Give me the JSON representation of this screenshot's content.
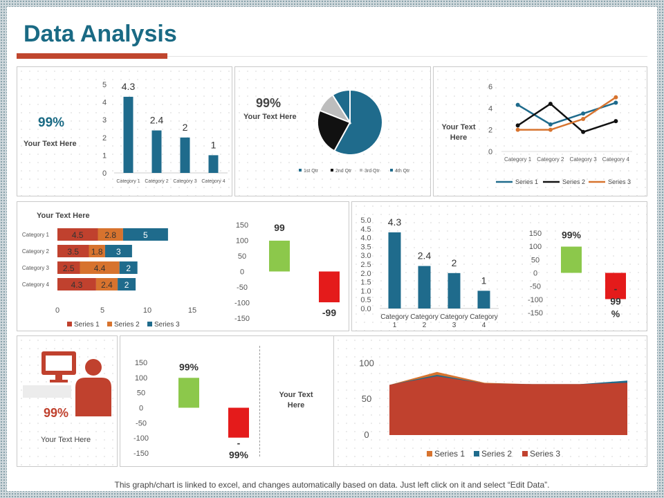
{
  "page": {
    "title": "Data Analysis",
    "footer": "This graph/chart is linked to excel, and changes automatically based on data. Just left click on it and select “Edit Data”."
  },
  "colors": {
    "blue": "#1f6b8c",
    "red": "#c0412e",
    "orange": "#d7732e",
    "black": "#111111",
    "gray": "#bdbdbd",
    "green": "#8cc84b",
    "brightred": "#e41b1b"
  },
  "panels": {
    "p1": {
      "kpi": "99%",
      "text": "Your Text Here"
    },
    "p2": {
      "kpi": "99%",
      "text": "Your Text Here"
    },
    "p3": {
      "text": "Your Text Here"
    },
    "p4": {
      "text": "Your Text Here",
      "pos_label": "99",
      "neg_label": "-99"
    },
    "p5": {
      "pos_label": "99%",
      "neg_label_line1": "-",
      "neg_label_line2": "99",
      "neg_label_line3": "%"
    },
    "p6": {
      "kpi": "99%",
      "text": "Your Text Here",
      "icon": "person-at-computer-icon"
    },
    "p7": {
      "pos_label": "99%",
      "neg_label_line1": "-",
      "neg_label_line2": "99%",
      "text": "Your Text Here"
    }
  },
  "chart_data": [
    {
      "id": "bar-top-left",
      "type": "bar",
      "categories": [
        "Category 1",
        "Category 2",
        "Category 3",
        "Category 4"
      ],
      "values": [
        4.3,
        2.4,
        2,
        1
      ],
      "data_labels": [
        "4.3",
        "2.4",
        "2",
        "1"
      ],
      "yticks": [
        "0",
        "1",
        "2",
        "3",
        "4",
        "5"
      ],
      "ylim": [
        0,
        5
      ]
    },
    {
      "id": "pie-top-middle",
      "type": "pie",
      "slices": [
        {
          "name": "1st Qtr",
          "value": 58
        },
        {
          "name": "2nd Qtr",
          "value": 23
        },
        {
          "name": "3rd Qtr",
          "value": 10
        },
        {
          "name": "4th Qtr",
          "value": 9
        }
      ]
    },
    {
      "id": "line-top-right",
      "type": "line",
      "categories": [
        "Category 1",
        "Category 2",
        "Category 3",
        "Category 4"
      ],
      "yticks": [
        "0",
        "2",
        "4",
        "6"
      ],
      "ylim": [
        0,
        6
      ],
      "series": [
        {
          "name": "Series 1",
          "values": [
            4.3,
            2.5,
            3.5,
            4.5
          ]
        },
        {
          "name": "Series 2",
          "values": [
            2.4,
            4.4,
            1.8,
            2.8
          ]
        },
        {
          "name": "Series 3",
          "values": [
            2,
            2,
            3,
            5
          ]
        }
      ]
    },
    {
      "id": "stacked-bar-mid-left",
      "type": "bar",
      "orientation": "horizontal",
      "stacked": true,
      "categories": [
        "Category 1",
        "Category 2",
        "Category 3",
        "Category 4"
      ],
      "xticks": [
        "0",
        "5",
        "10",
        "15"
      ],
      "xlim": [
        0,
        15
      ],
      "series": [
        {
          "name": "Series 1",
          "values": [
            4.5,
            3.5,
            2.5,
            4.3
          ],
          "labels": [
            "4.5",
            "3.5",
            "2.5",
            "4.3"
          ]
        },
        {
          "name": "Series 2",
          "values": [
            2.8,
            1.8,
            4.4,
            2.4
          ],
          "labels": [
            "2.8",
            "1.8",
            "4.4",
            "2.4"
          ]
        },
        {
          "name": "Series 3",
          "values": [
            5,
            3,
            2,
            2
          ],
          "labels": [
            "5",
            "3",
            "2",
            "2"
          ]
        }
      ]
    },
    {
      "id": "pos-neg-mid-left",
      "type": "bar",
      "values": [
        99,
        -99
      ],
      "yticks": [
        "150",
        "100",
        "50",
        "0",
        "-50",
        "-100",
        "-150"
      ],
      "ylim": [
        -150,
        150
      ]
    },
    {
      "id": "bar-mid-right",
      "type": "bar",
      "categories": [
        "Category 1",
        "Category 2",
        "Category 3",
        "Category 4"
      ],
      "values": [
        4.3,
        2.4,
        2,
        1
      ],
      "data_labels": [
        "4.3",
        "2.4",
        "2",
        "1"
      ],
      "yticks": [
        "5.0",
        "4.5",
        "4.0",
        "3.5",
        "3.0",
        "2.5",
        "2.0",
        "1.5",
        "1.0",
        "0.5",
        "0.0"
      ],
      "ylim": [
        0,
        5
      ]
    },
    {
      "id": "pos-neg-mid-right",
      "type": "bar",
      "values": [
        99,
        -99
      ],
      "yticks": [
        "150",
        "100",
        "50",
        "0",
        "-50",
        "-100",
        "-150"
      ],
      "ylim": [
        -150,
        150
      ]
    },
    {
      "id": "pos-neg-bottom",
      "type": "bar",
      "values": [
        99,
        -99
      ],
      "yticks": [
        "150",
        "100",
        "50",
        "0",
        "-50",
        "-100",
        "-150"
      ],
      "ylim": [
        -150,
        150
      ]
    },
    {
      "id": "area-bottom-right",
      "type": "area",
      "yticks": [
        "100",
        "50",
        "0"
      ],
      "ylim": [
        0,
        110
      ],
      "series": [
        {
          "name": "Series 1",
          "values": [
            70,
            88,
            73,
            71,
            71,
            73
          ]
        },
        {
          "name": "Series 2",
          "values": [
            70,
            84,
            72,
            71,
            71,
            76
          ]
        },
        {
          "name": "Series 3",
          "values": [
            70,
            82,
            72,
            71,
            71,
            73
          ]
        }
      ]
    }
  ]
}
